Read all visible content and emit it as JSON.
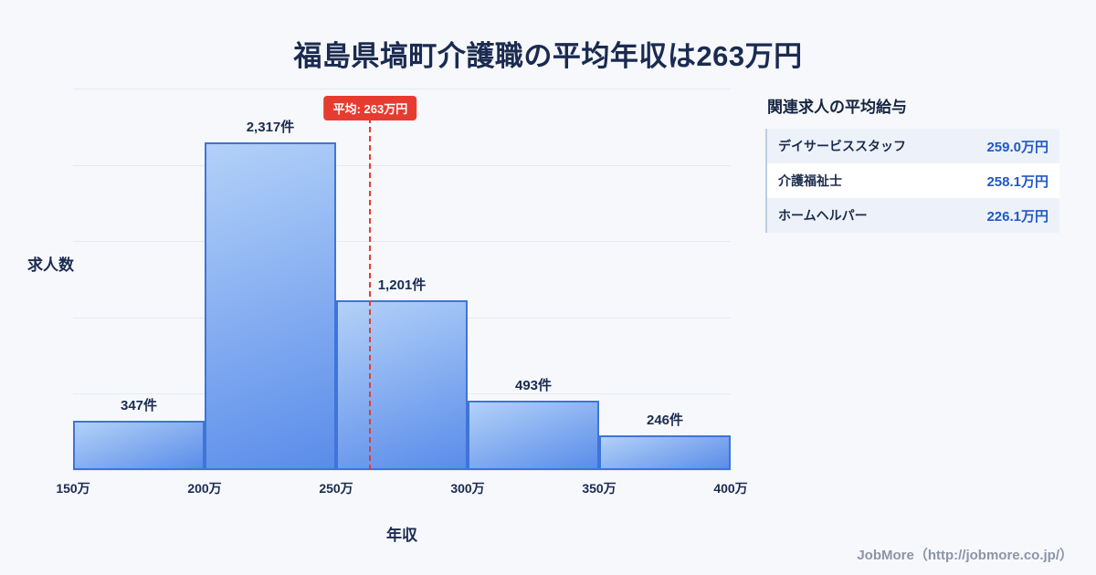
{
  "title": "福島県塙町介護職の平均年収は263万円",
  "chart_data": {
    "type": "bar",
    "categories": [
      "150万-200万",
      "200万-250万",
      "250万-300万",
      "300万-350万",
      "350万-400万"
    ],
    "values": [
      347,
      2317,
      1201,
      493,
      246
    ],
    "bar_labels": [
      "347件",
      "2,317件",
      "1,201件",
      "493件",
      "246件"
    ],
    "x_ticks": [
      "150万",
      "200万",
      "250万",
      "300万",
      "350万",
      "400万"
    ],
    "x_range": [
      150,
      400
    ],
    "ylim": [
      0,
      2700
    ],
    "gridline_intervals": 5,
    "xlabel": "年収",
    "ylabel": "求人数",
    "average": {
      "value": 263,
      "label": "平均: 263万円"
    },
    "legend_position": "none",
    "grid": "horizontal"
  },
  "sidebar": {
    "heading": "関連求人の平均給与",
    "rows": [
      {
        "label": "デイサービススタッフ",
        "value": "259.0万円"
      },
      {
        "label": "介護福祉士",
        "value": "258.1万円"
      },
      {
        "label": "ホームヘルパー",
        "value": "226.1万円"
      }
    ]
  },
  "footer": {
    "credit": "JobMore（http://jobmore.co.jp/）"
  },
  "colors": {
    "background": "#f6f8fc",
    "title_navy": "#1b2b50",
    "bar_gradient_top": "#b3d1f8",
    "bar_gradient_bottom": "#5a8ce9",
    "bar_border": "#3f74d9",
    "average_red": "#e63c30",
    "value_blue": "#2257c8",
    "gridline": "#e5eaf2"
  }
}
